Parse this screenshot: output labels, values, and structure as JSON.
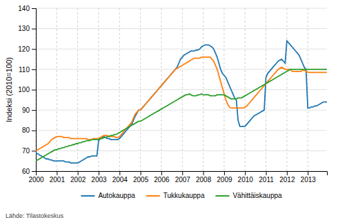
{
  "chart_data": {
    "type": "line",
    "y_label": "Indeksi (2010=100)",
    "annotations": [
      "Lähde: Tilastokeskus"
    ],
    "x": [
      2000,
      2000.0833333333333,
      2000.1666666666667,
      2000.25,
      2000.3333333333333,
      2000.4166666666667,
      2000.5,
      2000.5833333333333,
      2000.6666666666667,
      2000.75,
      2000.8333333333333,
      2000.9166666666667,
      2001,
      2001.0833333333333,
      2001.1666666666667,
      2001.25,
      2001.3333333333333,
      2001.4166666666667,
      2001.5,
      2001.5833333333333,
      2001.6666666666667,
      2001.75,
      2001.8333333333333,
      2001.9166666666667,
      2002,
      2002.0833333333333,
      2002.1666666666667,
      2002.25,
      2002.3333333333333,
      2002.4166666666667,
      2002.5,
      2002.5833333333333,
      2002.6666666666667,
      2002.75,
      2002.8333333333333,
      2002.9166666666667,
      2003,
      2003.0833333333333,
      2003.1666666666667,
      2003.25,
      2003.3333333333333,
      2003.4166666666667,
      2003.5,
      2003.5833333333333,
      2003.6666666666667,
      2003.75,
      2003.8333333333333,
      2003.9166666666667,
      2004,
      2004.0833333333333,
      2004.1666666666667,
      2004.25,
      2004.3333333333333,
      2004.4166666666667,
      2004.5,
      2004.5833333333333,
      2004.6666666666667,
      2004.75,
      2004.8333333333333,
      2004.9166666666667,
      2005,
      2005.0833333333333,
      2005.1666666666667,
      2005.25,
      2005.3333333333333,
      2005.4166666666667,
      2005.5,
      2005.5833333333333,
      2005.6666666666667,
      2005.75,
      2005.8333333333333,
      2005.9166666666667,
      2006,
      2006.0833333333333,
      2006.1666666666667,
      2006.25,
      2006.3333333333333,
      2006.4166666666667,
      2006.5,
      2006.5833333333333,
      2006.6666666666667,
      2006.75,
      2006.8333333333333,
      2006.9166666666667,
      2007,
      2007.0833333333333,
      2007.1666666666667,
      2007.25,
      2007.3333333333333,
      2007.4166666666667,
      2007.5,
      2007.5833333333333,
      2007.6666666666667,
      2007.75,
      2007.8333333333333,
      2007.9166666666667,
      2008,
      2008.0833333333333,
      2008.1666666666667,
      2008.25,
      2008.3333333333333,
      2008.4166666666667,
      2008.5,
      2008.5833333333333,
      2008.6666666666667,
      2008.75,
      2008.8333333333333,
      2008.9166666666667,
      2009,
      2009.0833333333333,
      2009.1666666666667,
      2009.25,
      2009.3333333333333,
      2009.4166666666667,
      2009.5,
      2009.5833333333333,
      2009.6666666666667,
      2009.75,
      2009.8333333333333,
      2009.9166666666667,
      2010,
      2010.0833333333333,
      2010.1666666666667,
      2010.25,
      2010.3333333333333,
      2010.4166666666667,
      2010.5,
      2010.5833333333333,
      2010.6666666666667,
      2010.75,
      2010.8333333333333,
      2010.9166666666667,
      2011,
      2011.0833333333333,
      2011.1666666666667,
      2011.25,
      2011.3333333333333,
      2011.4166666666667,
      2011.5,
      2011.5833333333333,
      2011.6666666666667,
      2011.75,
      2011.8333333333333,
      2011.9166666666667,
      2012,
      2012.0833333333333,
      2012.1666666666667,
      2012.25,
      2012.3333333333333,
      2012.4166666666667,
      2012.5,
      2012.5833333333333,
      2012.6666666666667,
      2012.75,
      2012.8333333333333,
      2012.9166666666667,
      2013,
      2013.0833333333333,
      2013.1666666666667,
      2013.25,
      2013.3333333333333,
      2013.4166666666667,
      2013.5,
      2013.5833333333333,
      2013.6666666666667,
      2013.75,
      2013.8333333333333,
      2013.9166666666667
    ],
    "series": [
      {
        "name": "Autokauppa",
        "values": [
          69,
          68.5,
          68,
          67.5,
          67,
          66.5,
          66,
          66,
          65.5,
          65.5,
          65,
          65,
          65,
          65,
          65,
          65,
          65,
          64.5,
          64.5,
          64.5,
          64,
          64,
          64,
          64,
          64,
          64.5,
          65,
          65.5,
          66,
          66.5,
          67,
          67,
          67.5,
          67.5,
          67.5,
          67.5,
          75,
          76,
          76.5,
          77,
          76.5,
          76,
          76,
          75.5,
          75.5,
          75.5,
          75.5,
          75.5,
          76,
          77,
          78,
          79,
          80,
          81,
          82,
          83,
          85,
          87,
          88.5,
          90,
          90,
          91,
          92,
          93,
          94,
          95,
          96,
          97,
          98,
          99,
          100,
          101,
          102,
          103,
          104,
          105,
          106,
          107,
          108,
          109,
          110,
          111,
          113,
          115,
          116,
          117,
          117.5,
          118,
          118.5,
          119,
          119,
          119,
          119.5,
          119.5,
          120,
          121,
          121.5,
          122,
          122,
          122,
          121.5,
          121,
          120,
          118,
          116,
          113,
          110,
          108,
          107,
          106,
          104,
          102,
          100,
          98,
          96,
          95,
          85,
          82,
          82,
          82,
          82,
          83,
          84,
          85,
          86,
          87,
          87.5,
          88,
          88.5,
          89,
          89.5,
          90,
          106,
          108,
          109,
          110,
          111,
          112,
          113,
          114,
          114.5,
          115,
          114,
          113,
          124,
          123,
          122,
          121,
          120,
          119,
          118,
          117,
          115,
          113,
          111,
          110,
          91,
          91,
          91.5,
          91.5,
          92,
          92,
          92.5,
          93,
          93.5,
          94,
          94,
          94
        ]
      },
      {
        "name": "Tukkukauppa",
        "values": [
          70,
          70.5,
          71,
          71.5,
          72,
          72.5,
          73,
          73.5,
          74.5,
          75.5,
          76,
          76.5,
          77,
          77,
          77,
          77,
          76.5,
          76.5,
          76.5,
          76.5,
          76,
          76,
          76,
          76,
          76,
          76,
          76,
          76,
          76,
          76,
          75.5,
          75.5,
          75.5,
          76,
          76,
          76,
          76,
          76.5,
          77,
          77.5,
          77.5,
          77.5,
          77,
          77,
          77,
          77,
          76.5,
          76.5,
          77,
          78,
          79,
          80,
          81,
          82,
          83,
          84,
          86,
          88,
          89,
          90,
          90,
          91,
          92,
          93,
          94,
          95,
          96,
          97,
          98,
          99,
          100,
          101,
          102,
          103,
          104,
          105,
          106,
          107,
          108,
          109,
          110,
          110.5,
          111,
          111.5,
          112,
          112.5,
          113,
          113.5,
          114,
          114.5,
          115,
          115.5,
          115.5,
          115.5,
          115.5,
          116,
          116,
          116,
          116,
          116,
          116,
          115,
          114,
          112,
          110,
          107,
          104,
          101,
          98,
          95,
          93,
          91.5,
          91,
          91,
          91,
          91,
          91,
          91,
          91,
          91,
          91.5,
          92,
          93,
          94,
          95,
          96,
          97,
          98,
          99,
          100,
          101,
          102,
          103,
          104,
          105,
          106,
          107,
          108,
          109,
          110,
          110.5,
          111,
          110.5,
          110,
          110,
          110,
          110,
          109,
          109,
          109,
          109,
          109,
          109,
          109.5,
          109.5,
          109,
          108.5,
          108.5,
          108.5,
          108.5,
          108.5,
          108.5,
          108.5,
          108.5,
          108.5,
          108.5,
          108.5,
          108.5
        ]
      },
      {
        "name": "Vähittäiskauppa",
        "values": [
          65,
          65.5,
          66,
          66.5,
          67,
          67.5,
          68,
          68.5,
          69,
          69.5,
          70,
          70.5,
          70.5,
          71,
          71,
          71.5,
          71.5,
          72,
          72,
          72.5,
          72.5,
          73,
          73,
          73.5,
          73.5,
          74,
          74,
          74.5,
          74.5,
          75,
          75,
          75,
          75.5,
          75.5,
          75.5,
          75.5,
          75.5,
          76,
          76,
          76.5,
          76.5,
          77,
          77,
          77.5,
          77.5,
          78,
          78,
          78.5,
          79,
          79.5,
          80,
          80.5,
          81,
          81.5,
          82,
          82.5,
          83,
          83.5,
          84,
          84.5,
          84.5,
          85,
          85.5,
          86,
          86.5,
          87,
          87.5,
          88,
          88.5,
          89,
          89.5,
          90,
          90.5,
          91,
          91.5,
          92,
          92.5,
          93,
          93.5,
          94,
          94.5,
          95,
          95.5,
          96,
          96.5,
          97,
          97.5,
          97.5,
          98,
          97.5,
          97,
          97,
          97,
          97.5,
          97.5,
          98,
          97.5,
          97.5,
          97.5,
          97.5,
          97,
          97,
          97,
          97,
          97.5,
          97.5,
          97.5,
          97.5,
          97.5,
          97,
          96.5,
          96,
          95.5,
          95.5,
          95.5,
          95.5,
          96,
          96,
          96,
          96.5,
          97,
          97.5,
          98,
          98.5,
          99,
          99.5,
          100,
          100.5,
          101,
          101.5,
          102,
          102.5,
          103,
          103.5,
          104,
          104.5,
          105,
          105.5,
          106,
          106.5,
          107,
          107.5,
          108,
          108.5,
          109,
          109.5,
          110,
          110,
          110,
          110,
          110,
          110,
          110,
          110,
          110,
          110,
          110,
          110,
          110,
          110,
          110,
          110,
          110,
          110,
          110,
          110,
          110,
          110
        ]
      }
    ],
    "xlim": [
      2000.0,
      2013.917
    ],
    "xticks": [
      2000,
      2001,
      2002,
      2003,
      2004,
      2005,
      2006,
      2007,
      2008,
      2009,
      2010,
      2011,
      2012,
      2013
    ],
    "ylim": [
      60,
      140
    ],
    "yticks": [
      60,
      70,
      80,
      90,
      100,
      110,
      120,
      130,
      140
    ],
    "grid": true,
    "legend": "bottom"
  }
}
